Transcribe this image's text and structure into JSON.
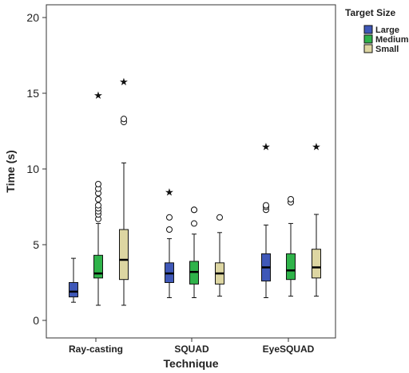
{
  "chart_data": {
    "type": "boxplot",
    "xlabel": "Technique",
    "ylabel": "Time (s)",
    "ylim": [
      0,
      21
    ],
    "yticks": [
      0,
      5,
      10,
      15,
      20
    ],
    "grid": false,
    "legend_title": "Target Size",
    "legend_position": "top-right",
    "categories": [
      "Ray-casting",
      "SQUAD",
      "EyeSQUAD"
    ],
    "series": [
      {
        "name": "Large",
        "color": "#3f58b8",
        "boxes": [
          {
            "min": 1.2,
            "q1": 1.55,
            "median": 1.9,
            "q3": 2.5,
            "max": 4.1,
            "outliers": [],
            "extremes": []
          },
          {
            "min": 1.5,
            "q1": 2.5,
            "median": 3.1,
            "q3": 3.8,
            "max": 5.4,
            "outliers": [
              6.0,
              6.8
            ],
            "extremes": [
              8.5
            ]
          },
          {
            "min": 1.5,
            "q1": 2.6,
            "median": 3.5,
            "q3": 4.4,
            "max": 6.3,
            "outliers": [
              7.3,
              7.5,
              7.6
            ],
            "extremes": [
              11.5
            ]
          }
        ]
      },
      {
        "name": "Medium",
        "color": "#2fb34a",
        "boxes": [
          {
            "min": 1.0,
            "q1": 2.8,
            "median": 3.1,
            "q3": 4.3,
            "max": 6.4,
            "outliers": [
              6.7,
              7.0,
              7.2,
              7.4,
              7.6,
              8.0,
              8.4,
              8.7,
              9.0
            ],
            "extremes": [
              14.9
            ]
          },
          {
            "min": 1.5,
            "q1": 2.4,
            "median": 3.2,
            "q3": 3.9,
            "max": 5.7,
            "outliers": [
              6.4,
              7.3,
              7.3
            ],
            "extremes": []
          },
          {
            "min": 1.6,
            "q1": 2.7,
            "median": 3.3,
            "q3": 4.4,
            "max": 6.4,
            "outliers": [
              7.8,
              8.0
            ],
            "extremes": []
          }
        ]
      },
      {
        "name": "Small",
        "color": "#ddd6a2",
        "boxes": [
          {
            "min": 1.0,
            "q1": 2.7,
            "median": 4.0,
            "q3": 6.0,
            "max": 10.4,
            "outliers": [
              13.1,
              13.3
            ],
            "extremes": [
              15.8
            ]
          },
          {
            "min": 1.6,
            "q1": 2.4,
            "median": 3.1,
            "q3": 3.8,
            "max": 5.8,
            "outliers": [
              6.8
            ],
            "extremes": []
          },
          {
            "min": 1.6,
            "q1": 2.8,
            "median": 3.5,
            "q3": 4.7,
            "max": 7.0,
            "outliers": [],
            "extremes": [
              11.5
            ]
          }
        ]
      }
    ]
  }
}
